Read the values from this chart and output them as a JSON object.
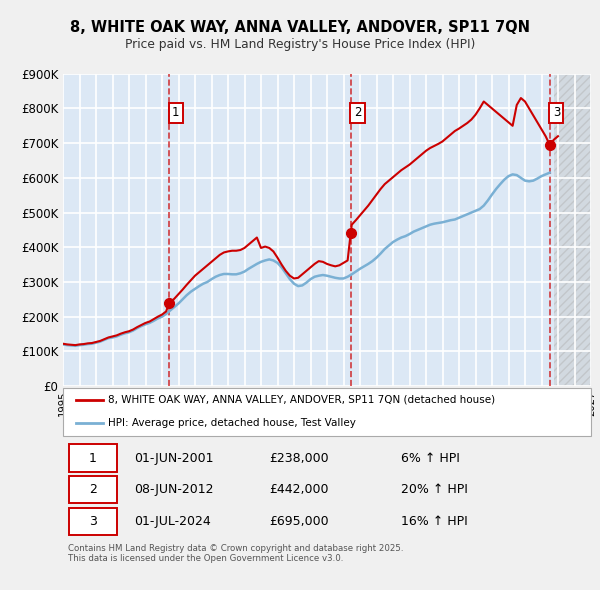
{
  "title": "8, WHITE OAK WAY, ANNA VALLEY, ANDOVER, SP11 7QN",
  "subtitle": "Price paid vs. HM Land Registry's House Price Index (HPI)",
  "background_color": "#f0f0f0",
  "plot_bg_color": "#dce8f5",
  "grid_color": "#ffffff",
  "ylim": [
    0,
    900000
  ],
  "yticks": [
    0,
    100000,
    200000,
    300000,
    400000,
    500000,
    600000,
    700000,
    800000,
    900000
  ],
  "ytick_labels": [
    "£0",
    "£100K",
    "£200K",
    "£300K",
    "£400K",
    "£500K",
    "£600K",
    "£700K",
    "£800K",
    "£900K"
  ],
  "xlim_start": 1995.0,
  "xlim_end": 2027.0,
  "sale_line_color": "#cc0000",
  "hpi_line_color": "#7ab0d4",
  "sale_label": "8, WHITE OAK WAY, ANNA VALLEY, ANDOVER, SP11 7QN (detached house)",
  "hpi_label": "HPI: Average price, detached house, Test Valley",
  "transactions": [
    {
      "num": 1,
      "date_x": 2001.42,
      "price": 238000,
      "label": "01-JUN-2001",
      "price_str": "£238,000",
      "pct": "6% ↑ HPI"
    },
    {
      "num": 2,
      "date_x": 2012.44,
      "price": 442000,
      "label": "08-JUN-2012",
      "price_str": "£442,000",
      "pct": "20% ↑ HPI"
    },
    {
      "num": 3,
      "date_x": 2024.5,
      "price": 695000,
      "label": "01-JUL-2024",
      "price_str": "£695,000",
      "pct": "16% ↑ HPI"
    }
  ],
  "footer": "Contains HM Land Registry data © Crown copyright and database right 2025.\nThis data is licensed under the Open Government Licence v3.0.",
  "hpi_data": [
    [
      1995.0,
      120000
    ],
    [
      1995.25,
      118000
    ],
    [
      1995.5,
      117000
    ],
    [
      1995.75,
      116000
    ],
    [
      1996.0,
      118000
    ],
    [
      1996.25,
      119000
    ],
    [
      1996.5,
      121000
    ],
    [
      1996.75,
      122000
    ],
    [
      1997.0,
      125000
    ],
    [
      1997.25,
      128000
    ],
    [
      1997.5,
      133000
    ],
    [
      1997.75,
      138000
    ],
    [
      1998.0,
      140000
    ],
    [
      1998.25,
      143000
    ],
    [
      1998.5,
      148000
    ],
    [
      1998.75,
      152000
    ],
    [
      1999.0,
      155000
    ],
    [
      1999.25,
      160000
    ],
    [
      1999.5,
      167000
    ],
    [
      1999.75,
      173000
    ],
    [
      2000.0,
      178000
    ],
    [
      2000.25,
      182000
    ],
    [
      2000.5,
      188000
    ],
    [
      2000.75,
      195000
    ],
    [
      2001.0,
      200000
    ],
    [
      2001.25,
      208000
    ],
    [
      2001.5,
      218000
    ],
    [
      2001.75,
      228000
    ],
    [
      2002.0,
      238000
    ],
    [
      2002.25,
      250000
    ],
    [
      2002.5,
      262000
    ],
    [
      2002.75,
      272000
    ],
    [
      2003.0,
      280000
    ],
    [
      2003.25,
      288000
    ],
    [
      2003.5,
      295000
    ],
    [
      2003.75,
      300000
    ],
    [
      2004.0,
      308000
    ],
    [
      2004.25,
      315000
    ],
    [
      2004.5,
      320000
    ],
    [
      2004.75,
      323000
    ],
    [
      2005.0,
      323000
    ],
    [
      2005.25,
      322000
    ],
    [
      2005.5,
      322000
    ],
    [
      2005.75,
      325000
    ],
    [
      2006.0,
      330000
    ],
    [
      2006.25,
      338000
    ],
    [
      2006.5,
      345000
    ],
    [
      2006.75,
      352000
    ],
    [
      2007.0,
      358000
    ],
    [
      2007.25,
      362000
    ],
    [
      2007.5,
      365000
    ],
    [
      2007.75,
      362000
    ],
    [
      2008.0,
      355000
    ],
    [
      2008.25,
      342000
    ],
    [
      2008.5,
      325000
    ],
    [
      2008.75,
      308000
    ],
    [
      2009.0,
      295000
    ],
    [
      2009.25,
      288000
    ],
    [
      2009.5,
      290000
    ],
    [
      2009.75,
      298000
    ],
    [
      2010.0,
      308000
    ],
    [
      2010.25,
      315000
    ],
    [
      2010.5,
      318000
    ],
    [
      2010.75,
      320000
    ],
    [
      2011.0,
      318000
    ],
    [
      2011.25,
      315000
    ],
    [
      2011.5,
      312000
    ],
    [
      2011.75,
      310000
    ],
    [
      2012.0,
      310000
    ],
    [
      2012.25,
      315000
    ],
    [
      2012.5,
      322000
    ],
    [
      2012.75,
      330000
    ],
    [
      2013.0,
      338000
    ],
    [
      2013.25,
      345000
    ],
    [
      2013.5,
      352000
    ],
    [
      2013.75,
      360000
    ],
    [
      2014.0,
      370000
    ],
    [
      2014.25,
      382000
    ],
    [
      2014.5,
      395000
    ],
    [
      2014.75,
      405000
    ],
    [
      2015.0,
      415000
    ],
    [
      2015.25,
      422000
    ],
    [
      2015.5,
      428000
    ],
    [
      2015.75,
      432000
    ],
    [
      2016.0,
      438000
    ],
    [
      2016.25,
      445000
    ],
    [
      2016.5,
      450000
    ],
    [
      2016.75,
      455000
    ],
    [
      2017.0,
      460000
    ],
    [
      2017.25,
      465000
    ],
    [
      2017.5,
      468000
    ],
    [
      2017.75,
      470000
    ],
    [
      2018.0,
      472000
    ],
    [
      2018.25,
      475000
    ],
    [
      2018.5,
      478000
    ],
    [
      2018.75,
      480000
    ],
    [
      2019.0,
      485000
    ],
    [
      2019.25,
      490000
    ],
    [
      2019.5,
      495000
    ],
    [
      2019.75,
      500000
    ],
    [
      2020.0,
      505000
    ],
    [
      2020.25,
      510000
    ],
    [
      2020.5,
      520000
    ],
    [
      2020.75,
      535000
    ],
    [
      2021.0,
      552000
    ],
    [
      2021.25,
      568000
    ],
    [
      2021.5,
      582000
    ],
    [
      2021.75,
      595000
    ],
    [
      2022.0,
      605000
    ],
    [
      2022.25,
      610000
    ],
    [
      2022.5,
      608000
    ],
    [
      2022.75,
      600000
    ],
    [
      2023.0,
      592000
    ],
    [
      2023.25,
      590000
    ],
    [
      2023.5,
      592000
    ],
    [
      2023.75,
      598000
    ],
    [
      2024.0,
      605000
    ],
    [
      2024.25,
      610000
    ],
    [
      2024.5,
      615000
    ]
  ],
  "sale_data": [
    [
      1995.0,
      122000
    ],
    [
      1995.25,
      120000
    ],
    [
      1995.5,
      119000
    ],
    [
      1995.75,
      118000
    ],
    [
      1996.0,
      120000
    ],
    [
      1996.25,
      121000
    ],
    [
      1996.5,
      123000
    ],
    [
      1996.75,
      124000
    ],
    [
      1997.0,
      127000
    ],
    [
      1997.25,
      130000
    ],
    [
      1997.5,
      135000
    ],
    [
      1997.75,
      140000
    ],
    [
      1998.0,
      143000
    ],
    [
      1998.25,
      146000
    ],
    [
      1998.5,
      151000
    ],
    [
      1998.75,
      155000
    ],
    [
      1999.0,
      158000
    ],
    [
      1999.25,
      163000
    ],
    [
      1999.5,
      170000
    ],
    [
      1999.75,
      176000
    ],
    [
      2000.0,
      182000
    ],
    [
      2000.25,
      186000
    ],
    [
      2000.5,
      193000
    ],
    [
      2000.75,
      200000
    ],
    [
      2001.0,
      206000
    ],
    [
      2001.25,
      215000
    ],
    [
      2001.42,
      238000
    ],
    [
      2001.5,
      240000
    ],
    [
      2001.75,
      252000
    ],
    [
      2002.0,
      265000
    ],
    [
      2002.25,
      278000
    ],
    [
      2002.5,
      292000
    ],
    [
      2002.75,
      305000
    ],
    [
      2003.0,
      318000
    ],
    [
      2003.25,
      328000
    ],
    [
      2003.5,
      338000
    ],
    [
      2003.75,
      348000
    ],
    [
      2004.0,
      358000
    ],
    [
      2004.25,
      368000
    ],
    [
      2004.5,
      378000
    ],
    [
      2004.75,
      385000
    ],
    [
      2005.0,
      388000
    ],
    [
      2005.25,
      390000
    ],
    [
      2005.5,
      390000
    ],
    [
      2005.75,
      392000
    ],
    [
      2006.0,
      398000
    ],
    [
      2006.25,
      408000
    ],
    [
      2006.5,
      418000
    ],
    [
      2006.75,
      428000
    ],
    [
      2007.0,
      398000
    ],
    [
      2007.25,
      402000
    ],
    [
      2007.5,
      398000
    ],
    [
      2007.75,
      388000
    ],
    [
      2008.0,
      370000
    ],
    [
      2008.25,
      350000
    ],
    [
      2008.5,
      332000
    ],
    [
      2008.75,
      318000
    ],
    [
      2009.0,
      310000
    ],
    [
      2009.25,
      312000
    ],
    [
      2009.5,
      322000
    ],
    [
      2009.75,
      332000
    ],
    [
      2010.0,
      342000
    ],
    [
      2010.25,
      352000
    ],
    [
      2010.5,
      360000
    ],
    [
      2010.75,
      358000
    ],
    [
      2011.0,
      352000
    ],
    [
      2011.25,
      348000
    ],
    [
      2011.5,
      345000
    ],
    [
      2011.75,
      348000
    ],
    [
      2012.0,
      355000
    ],
    [
      2012.25,
      362000
    ],
    [
      2012.44,
      442000
    ],
    [
      2012.5,
      465000
    ],
    [
      2012.75,
      478000
    ],
    [
      2013.0,
      492000
    ],
    [
      2013.25,
      506000
    ],
    [
      2013.5,
      520000
    ],
    [
      2013.75,
      536000
    ],
    [
      2014.0,
      552000
    ],
    [
      2014.25,
      568000
    ],
    [
      2014.5,
      582000
    ],
    [
      2014.75,
      592000
    ],
    [
      2015.0,
      602000
    ],
    [
      2015.25,
      612000
    ],
    [
      2015.5,
      622000
    ],
    [
      2015.75,
      630000
    ],
    [
      2016.0,
      638000
    ],
    [
      2016.25,
      648000
    ],
    [
      2016.5,
      658000
    ],
    [
      2016.75,
      668000
    ],
    [
      2017.0,
      678000
    ],
    [
      2017.25,
      686000
    ],
    [
      2017.5,
      692000
    ],
    [
      2017.75,
      698000
    ],
    [
      2018.0,
      705000
    ],
    [
      2018.25,
      715000
    ],
    [
      2018.5,
      725000
    ],
    [
      2018.75,
      735000
    ],
    [
      2019.0,
      742000
    ],
    [
      2019.25,
      750000
    ],
    [
      2019.5,
      758000
    ],
    [
      2019.75,
      768000
    ],
    [
      2020.0,
      782000
    ],
    [
      2020.25,
      800000
    ],
    [
      2020.5,
      820000
    ],
    [
      2020.75,
      810000
    ],
    [
      2021.0,
      800000
    ],
    [
      2021.25,
      790000
    ],
    [
      2021.5,
      780000
    ],
    [
      2021.75,
      770000
    ],
    [
      2022.0,
      760000
    ],
    [
      2022.25,
      750000
    ],
    [
      2022.5,
      810000
    ],
    [
      2022.75,
      830000
    ],
    [
      2023.0,
      820000
    ],
    [
      2023.25,
      800000
    ],
    [
      2023.5,
      780000
    ],
    [
      2023.75,
      760000
    ],
    [
      2024.0,
      740000
    ],
    [
      2024.25,
      720000
    ],
    [
      2024.5,
      695000
    ],
    [
      2024.75,
      710000
    ],
    [
      2025.0,
      720000
    ]
  ]
}
